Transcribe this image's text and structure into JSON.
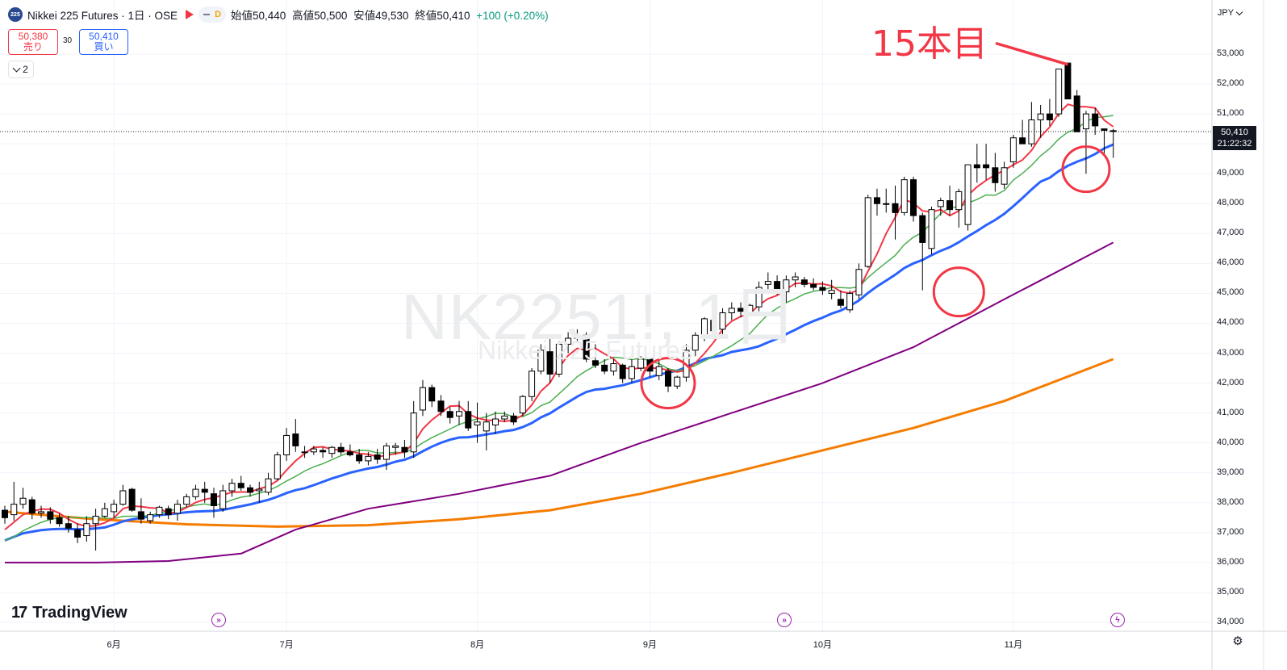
{
  "header": {
    "symbol_logo": "225",
    "title": "Nikkei 225 Futures · 1日 · OSE",
    "pill_letter": "D",
    "ohlc": [
      {
        "label": "始値",
        "value": "50,440"
      },
      {
        "label": "高値",
        "value": "50,500"
      },
      {
        "label": "安値",
        "value": "49,530"
      },
      {
        "label": "終値",
        "value": "50,410"
      }
    ],
    "change": "+100 (+0.20%)"
  },
  "trade": {
    "sell_price": "50,380",
    "sell_label": "売り",
    "spread": "30",
    "buy_price": "50,410",
    "buy_label": "買い"
  },
  "indicators_count": "2",
  "watermark": {
    "main": "NK2251!, 1日",
    "sub": "Nikkei 225 Futures"
  },
  "currency": "JPY",
  "price_tag": {
    "price": "50,410",
    "countdown": "21:22:32"
  },
  "annotation": "15本目",
  "brand": "TradingView",
  "colors": {
    "up": "#ffffff",
    "down": "#000000",
    "ma5": "#f23645",
    "ma10": "#4caf50",
    "ma20": "#2962ff",
    "ma60": "#800080",
    "ma100": "#f57c00",
    "annotation": "#f23645"
  },
  "chart_data": {
    "type": "candlestick",
    "y_ticks": [
      "53,000",
      "52,000",
      "51,000",
      "50,000",
      "49,000",
      "48,000",
      "47,000",
      "46,000",
      "45,000",
      "44,000",
      "43,000",
      "42,000",
      "41,000",
      "40,000",
      "39,000",
      "38,000",
      "37,000",
      "36,000",
      "35,000",
      "34,000"
    ],
    "ylim": [
      33800,
      53800
    ],
    "x_labels": [
      {
        "label": "6月",
        "index": 12
      },
      {
        "label": "7月",
        "index": 31
      },
      {
        "label": "8月",
        "index": 52
      },
      {
        "label": "9月",
        "index": 71
      },
      {
        "label": "10月",
        "index": 90
      },
      {
        "label": "11月",
        "index": 111
      }
    ],
    "candles": [
      [
        37750,
        37900,
        37300,
        37500
      ],
      [
        37600,
        38700,
        37400,
        37950
      ],
      [
        37950,
        38500,
        37800,
        38150
      ],
      [
        38100,
        38200,
        37450,
        37650
      ],
      [
        37650,
        37900,
        37500,
        37700
      ],
      [
        37700,
        37850,
        37300,
        37450
      ],
      [
        37500,
        37650,
        37200,
        37300
      ],
      [
        37300,
        37550,
        37000,
        37150
      ],
      [
        37100,
        37300,
        36650,
        36850
      ],
      [
        36900,
        37550,
        36700,
        37300
      ],
      [
        37300,
        37800,
        36400,
        37550
      ],
      [
        37550,
        38000,
        37500,
        37800
      ],
      [
        37700,
        38100,
        37500,
        37950
      ],
      [
        37950,
        38600,
        37900,
        38400
      ],
      [
        38450,
        38500,
        37700,
        37750
      ],
      [
        37700,
        38150,
        37300,
        37450
      ],
      [
        37400,
        37700,
        37300,
        37600
      ],
      [
        37600,
        37900,
        37500,
        37850
      ],
      [
        37800,
        37900,
        37450,
        37600
      ],
      [
        37650,
        38100,
        37400,
        37950
      ],
      [
        37950,
        38300,
        37850,
        38200
      ],
      [
        38200,
        38600,
        38100,
        38450
      ],
      [
        38450,
        38700,
        38000,
        38350
      ],
      [
        38300,
        38500,
        37500,
        37900
      ],
      [
        37800,
        38600,
        37700,
        38400
      ],
      [
        38400,
        38800,
        38200,
        38650
      ],
      [
        38650,
        38900,
        38400,
        38500
      ],
      [
        38500,
        38600,
        38200,
        38350
      ],
      [
        38400,
        38700,
        38000,
        38450
      ],
      [
        38350,
        39000,
        38250,
        38800
      ],
      [
        38800,
        39700,
        38750,
        39600
      ],
      [
        39600,
        40500,
        39400,
        40250
      ],
      [
        40300,
        40800,
        39700,
        39900
      ],
      [
        39700,
        39900,
        39500,
        39700
      ],
      [
        39700,
        39900,
        39600,
        39800
      ],
      [
        39750,
        39850,
        39500,
        39700
      ],
      [
        39650,
        39900,
        39500,
        39850
      ],
      [
        39850,
        40000,
        39600,
        39700
      ],
      [
        39700,
        39950,
        39550,
        39600
      ],
      [
        39600,
        39800,
        39300,
        39400
      ],
      [
        39400,
        39700,
        39250,
        39550
      ],
      [
        39600,
        39800,
        39300,
        39450
      ],
      [
        39450,
        40000,
        39100,
        39900
      ],
      [
        39850,
        40000,
        39600,
        39900
      ],
      [
        39850,
        40100,
        39500,
        39700
      ],
      [
        39700,
        41400,
        39500,
        41000
      ],
      [
        41100,
        42100,
        40900,
        41850
      ],
      [
        41850,
        41950,
        41200,
        41400
      ],
      [
        41400,
        41600,
        40900,
        41050
      ],
      [
        41050,
        41200,
        40650,
        40850
      ],
      [
        40900,
        41400,
        40600,
        41050
      ],
      [
        41050,
        41400,
        40400,
        40500
      ],
      [
        40600,
        41350,
        40000,
        40700
      ],
      [
        40400,
        41000,
        39750,
        40700
      ],
      [
        40600,
        41050,
        40300,
        40800
      ],
      [
        40800,
        41050,
        40700,
        40900
      ],
      [
        40900,
        41000,
        40600,
        40700
      ],
      [
        41000,
        41600,
        40900,
        41550
      ],
      [
        41550,
        42500,
        41400,
        42400
      ],
      [
        42400,
        43300,
        42300,
        43100
      ],
      [
        43050,
        43600,
        42000,
        42300
      ],
      [
        42300,
        43400,
        42200,
        43300
      ],
      [
        43300,
        43700,
        43000,
        43500
      ],
      [
        43500,
        43800,
        43350,
        43600
      ],
      [
        43600,
        43700,
        42700,
        42800
      ],
      [
        42750,
        43300,
        42500,
        42600
      ],
      [
        42600,
        42800,
        42300,
        42400
      ],
      [
        42400,
        42800,
        42250,
        42650
      ],
      [
        42600,
        42650,
        42000,
        42150
      ],
      [
        42150,
        42800,
        42000,
        42550
      ],
      [
        42500,
        42900,
        42400,
        42800
      ],
      [
        42800,
        42850,
        42200,
        42400
      ],
      [
        42250,
        42800,
        42100,
        42550
      ],
      [
        42400,
        42500,
        41700,
        41900
      ],
      [
        41900,
        42250,
        41800,
        42200
      ],
      [
        42200,
        43300,
        42050,
        43100
      ],
      [
        43100,
        43700,
        42900,
        43600
      ],
      [
        43550,
        44200,
        43400,
        44150
      ],
      [
        44100,
        44300,
        43650,
        43750
      ],
      [
        43800,
        44500,
        43600,
        44350
      ],
      [
        44350,
        44700,
        44100,
        44500
      ],
      [
        44500,
        44700,
        44200,
        44400
      ],
      [
        44350,
        44650,
        44250,
        44600
      ],
      [
        44550,
        45400,
        44400,
        45200
      ],
      [
        45300,
        45700,
        45100,
        45400
      ],
      [
        45400,
        45600,
        44950,
        45050
      ],
      [
        45050,
        45600,
        44700,
        45450
      ],
      [
        45450,
        45700,
        45200,
        45550
      ],
      [
        45450,
        45550,
        45200,
        45300
      ],
      [
        45300,
        45500,
        45100,
        45200
      ],
      [
        45200,
        45400,
        44950,
        45100
      ],
      [
        45000,
        45450,
        44800,
        45100
      ],
      [
        44800,
        45100,
        44500,
        44600
      ],
      [
        44450,
        45100,
        44350,
        45000
      ],
      [
        44950,
        46000,
        44800,
        45800
      ],
      [
        45900,
        48300,
        45850,
        48200
      ],
      [
        48200,
        48500,
        47600,
        48000
      ],
      [
        48000,
        48500,
        47700,
        48000
      ],
      [
        48000,
        48600,
        46800,
        47700
      ],
      [
        47700,
        48900,
        47600,
        48800
      ],
      [
        48800,
        48900,
        47400,
        47600
      ],
      [
        47600,
        47700,
        45100,
        46700
      ],
      [
        46500,
        47900,
        46300,
        47800
      ],
      [
        47900,
        48200,
        47600,
        48100
      ],
      [
        48100,
        48600,
        47600,
        47800
      ],
      [
        47800,
        48500,
        47200,
        48400
      ],
      [
        47300,
        49300,
        47100,
        49300
      ],
      [
        49300,
        50000,
        48700,
        49200
      ],
      [
        49300,
        50000,
        48800,
        49200
      ],
      [
        49200,
        49700,
        48400,
        48700
      ],
      [
        48650,
        49400,
        48500,
        49200
      ],
      [
        49400,
        50300,
        49200,
        50200
      ],
      [
        50200,
        50800,
        50000,
        50000
      ],
      [
        50000,
        51400,
        49900,
        50800
      ],
      [
        50800,
        51300,
        50200,
        51000
      ],
      [
        51000,
        51500,
        50600,
        50800
      ],
      [
        51000,
        52500,
        50900,
        52500
      ],
      [
        52700,
        52700,
        51500,
        51500
      ],
      [
        51600,
        51800,
        50400,
        50400
      ],
      [
        50500,
        51100,
        49000,
        51000
      ],
      [
        51000,
        51200,
        50300,
        50600
      ],
      [
        50500,
        50500,
        49600,
        50450
      ],
      [
        50440,
        50500,
        49530,
        50410
      ]
    ]
  }
}
